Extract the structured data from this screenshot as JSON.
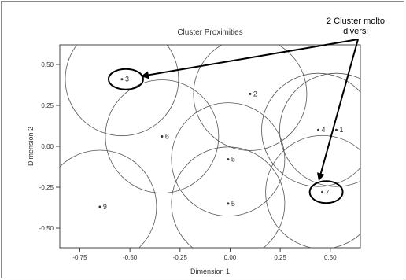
{
  "chart_data": {
    "type": "scatter",
    "title": "Cluster Proximities",
    "xlabel": "Dimension 1",
    "ylabel": "Dimension 2",
    "xlim": [
      -0.85,
      0.65
    ],
    "ylim": [
      -0.62,
      0.62
    ],
    "xticks": [
      -0.75,
      -0.5,
      -0.25,
      0.0,
      0.25,
      0.5
    ],
    "xtick_labels": [
      "-0.75",
      "-0.50",
      "-0.25",
      "0.00",
      "0.25",
      "0.50"
    ],
    "yticks": [
      0.5,
      0.25,
      0.0,
      -0.25,
      -0.5
    ],
    "ytick_labels": [
      "0.50",
      "0.25",
      "0.00",
      "-0.25",
      "-0.50"
    ],
    "points": [
      {
        "label": "1",
        "x": 0.53,
        "y": 0.1
      },
      {
        "label": "2",
        "x": 0.1,
        "y": 0.32
      },
      {
        "label": "3",
        "x": -0.54,
        "y": 0.41
      },
      {
        "label": "4",
        "x": 0.44,
        "y": 0.1
      },
      {
        "label": "5",
        "x": -0.01,
        "y": -0.08
      },
      {
        "label": "5",
        "x": -0.01,
        "y": -0.35
      },
      {
        "label": "6",
        "x": -0.34,
        "y": 0.06
      },
      {
        "label": "7",
        "x": 0.46,
        "y": -0.28
      },
      {
        "label": "9",
        "x": -0.65,
        "y": -0.37
      }
    ],
    "grid": false,
    "proximity_circles": true,
    "line_color": "#555555"
  },
  "annotation": {
    "text_line1": "2 Cluster molto",
    "text_line2": "diversi",
    "color": "#000000"
  }
}
